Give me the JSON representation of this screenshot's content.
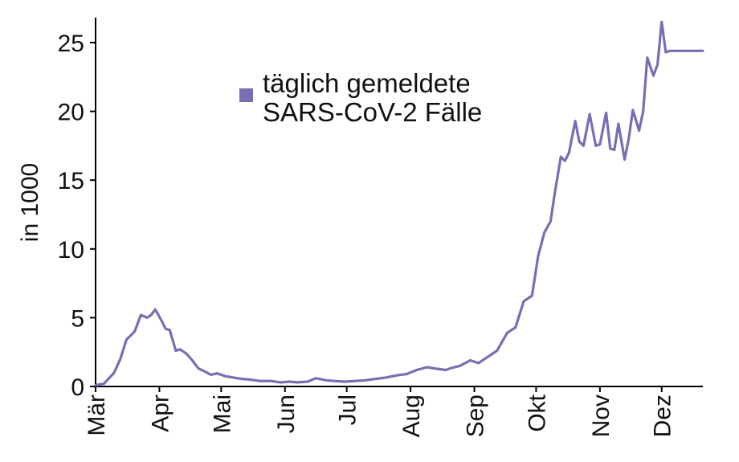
{
  "chart_data": {
    "type": "line",
    "ylabel": "in 1000",
    "xlabel": "",
    "title": "",
    "ylim": [
      0,
      26
    ],
    "yticks": [
      "0",
      "5",
      "10",
      "15",
      "20",
      "25"
    ],
    "month_ticks": [
      "Mär",
      "Apr",
      "Mai",
      "Jun",
      "Jul",
      "Aug",
      "Sep",
      "Okt",
      "Nov",
      "Dez"
    ],
    "legend": {
      "line1": "täglich gemeldete",
      "line2": "SARS-CoV-2 Fälle",
      "position": "top-center"
    },
    "color": "#7570b3",
    "series": [
      {
        "name": "täglich gemeldete SARS-CoV-2 Fälle",
        "x": [
          "2020-03-01",
          "2020-03-05",
          "2020-03-10",
          "2020-03-13",
          "2020-03-16",
          "2020-03-20",
          "2020-03-23",
          "2020-03-26",
          "2020-03-28",
          "2020-03-30",
          "2020-04-02",
          "2020-04-04",
          "2020-04-06",
          "2020-04-09",
          "2020-04-11",
          "2020-04-14",
          "2020-04-17",
          "2020-04-20",
          "2020-04-23",
          "2020-04-26",
          "2020-04-29",
          "2020-05-03",
          "2020-05-07",
          "2020-05-11",
          "2020-05-15",
          "2020-05-20",
          "2020-05-25",
          "2020-05-30",
          "2020-06-03",
          "2020-06-07",
          "2020-06-12",
          "2020-06-16",
          "2020-06-21",
          "2020-06-25",
          "2020-06-30",
          "2020-07-05",
          "2020-07-10",
          "2020-07-15",
          "2020-07-20",
          "2020-07-25",
          "2020-07-30",
          "2020-08-04",
          "2020-08-09",
          "2020-08-13",
          "2020-08-18",
          "2020-08-21",
          "2020-08-25",
          "2020-08-30",
          "2020-09-03",
          "2020-09-08",
          "2020-09-12",
          "2020-09-17",
          "2020-09-21",
          "2020-09-25",
          "2020-09-29",
          "2020-10-02",
          "2020-10-05",
          "2020-10-08",
          "2020-10-10",
          "2020-10-13",
          "2020-10-15",
          "2020-10-17",
          "2020-10-20",
          "2020-10-22",
          "2020-10-24",
          "2020-10-27",
          "2020-10-30",
          "2020-11-01",
          "2020-11-04",
          "2020-11-06",
          "2020-11-08",
          "2020-11-10",
          "2020-11-13",
          "2020-11-15",
          "2020-11-17",
          "2020-11-20",
          "2020-11-22",
          "2020-11-24",
          "2020-11-27",
          "2020-11-29",
          "2020-12-01",
          "2020-12-03",
          "2020-12-05",
          "2020-12-07",
          "2020-12-10",
          "2020-12-12",
          "2020-12-15",
          "2020-12-17",
          "2020-12-19",
          "2020-12-21"
        ],
        "values": [
          0.1,
          0.2,
          1.0,
          2.0,
          3.4,
          4.0,
          5.2,
          5.0,
          5.2,
          5.6,
          4.8,
          4.2,
          4.1,
          2.6,
          2.7,
          2.4,
          1.9,
          1.3,
          1.1,
          0.85,
          0.95,
          0.75,
          0.65,
          0.55,
          0.5,
          0.4,
          0.4,
          0.3,
          0.35,
          0.3,
          0.35,
          0.6,
          0.45,
          0.4,
          0.35,
          0.4,
          0.45,
          0.55,
          0.65,
          0.8,
          0.9,
          1.2,
          1.4,
          1.3,
          1.2,
          1.35,
          1.5,
          1.9,
          1.7,
          2.2,
          2.6,
          3.9,
          4.3,
          6.2,
          6.6,
          9.5,
          11.2,
          12.0,
          14.0,
          16.7,
          16.4,
          17.0,
          19.3,
          17.8,
          17.5,
          19.8,
          17.5,
          17.6,
          19.9,
          17.3,
          17.2,
          19.1,
          16.5,
          18.0,
          20.1,
          18.6,
          20.0,
          23.9,
          22.6,
          23.4,
          26.5,
          24.3,
          24.4,
          24.4,
          24.4,
          24.4,
          24.4,
          24.4,
          24.4,
          24.4
        ]
      }
    ]
  }
}
